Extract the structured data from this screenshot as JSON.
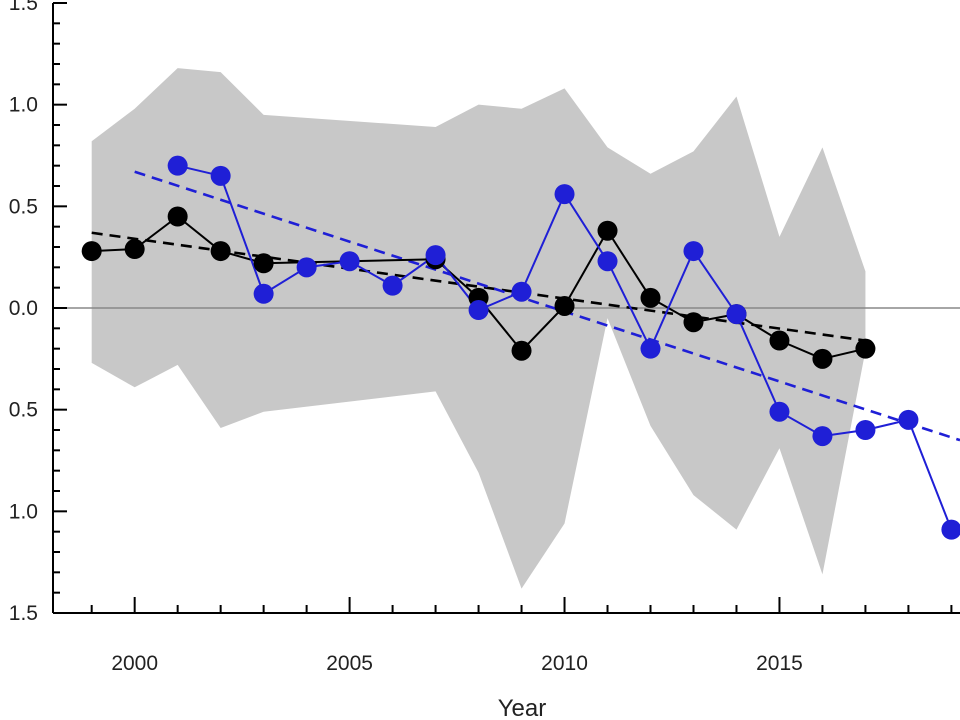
{
  "chart_data": {
    "type": "line",
    "xlabel": "Year",
    "ylabel": "",
    "xlim": [
      1998.1,
      2019.2
    ],
    "ylim": [
      -1.5,
      1.5
    ],
    "x_ticks": [
      2000,
      2005,
      2010,
      2015
    ],
    "x_tick_labels": [
      "2000",
      "2005",
      "2010",
      "2015"
    ],
    "y_ticks": [
      1.5,
      1.0,
      0.5,
      0.0,
      -0.5,
      -1.0,
      -1.5
    ],
    "y_tick_labels": [
      "1.5",
      "1.0",
      "0.5",
      "0.0",
      "0.5",
      "1.0",
      "1.5"
    ],
    "reference_line": {
      "y": 0.0,
      "color": "#888888"
    },
    "band": {
      "color": "#c8c8c8",
      "x": [
        1999,
        2000,
        2001,
        2002,
        2003,
        2007,
        2008,
        2009,
        2010,
        2011,
        2012,
        2013,
        2014,
        2015,
        2016,
        2017
      ],
      "upper": [
        0.82,
        0.98,
        1.18,
        1.16,
        0.95,
        0.89,
        1.0,
        0.98,
        1.08,
        0.79,
        0.66,
        0.77,
        1.04,
        0.35,
        0.79,
        0.18
      ],
      "lower": [
        -0.27,
        -0.39,
        -0.28,
        -0.59,
        -0.51,
        -0.41,
        -0.81,
        -1.38,
        -1.06,
        -0.05,
        -0.58,
        -0.92,
        -1.09,
        -0.69,
        -1.31,
        -0.21
      ]
    },
    "series": [
      {
        "color": "#000000",
        "x": [
          1999,
          2000,
          2001,
          2002,
          2003,
          2007,
          2008,
          2009,
          2010,
          2011,
          2012,
          2013,
          2014,
          2015,
          2016,
          2017
        ],
        "y": [
          0.28,
          0.29,
          0.45,
          0.28,
          0.22,
          0.24,
          0.05,
          -0.21,
          0.01,
          0.38,
          0.05,
          -0.07,
          -0.03,
          -0.16,
          -0.25,
          -0.2
        ],
        "trend": {
          "x": [
            1999,
            2017
          ],
          "y": [
            0.37,
            -0.16
          ]
        }
      },
      {
        "color": "#1f1fd6",
        "x": [
          2001,
          2002,
          2003,
          2004,
          2005,
          2006,
          2007,
          2008,
          2009,
          2010,
          2011,
          2012,
          2013,
          2014,
          2015,
          2016,
          2017,
          2018,
          2019
        ],
        "y": [
          0.7,
          0.65,
          0.07,
          0.2,
          0.23,
          0.11,
          0.26,
          -0.01,
          0.08,
          0.56,
          0.23,
          -0.2,
          0.28,
          -0.03,
          -0.51,
          -0.63,
          -0.6,
          -0.55,
          -1.09
        ],
        "trend": {
          "x": [
            2000,
            2019.2
          ],
          "y": [
            0.67,
            -0.65
          ]
        }
      }
    ]
  }
}
